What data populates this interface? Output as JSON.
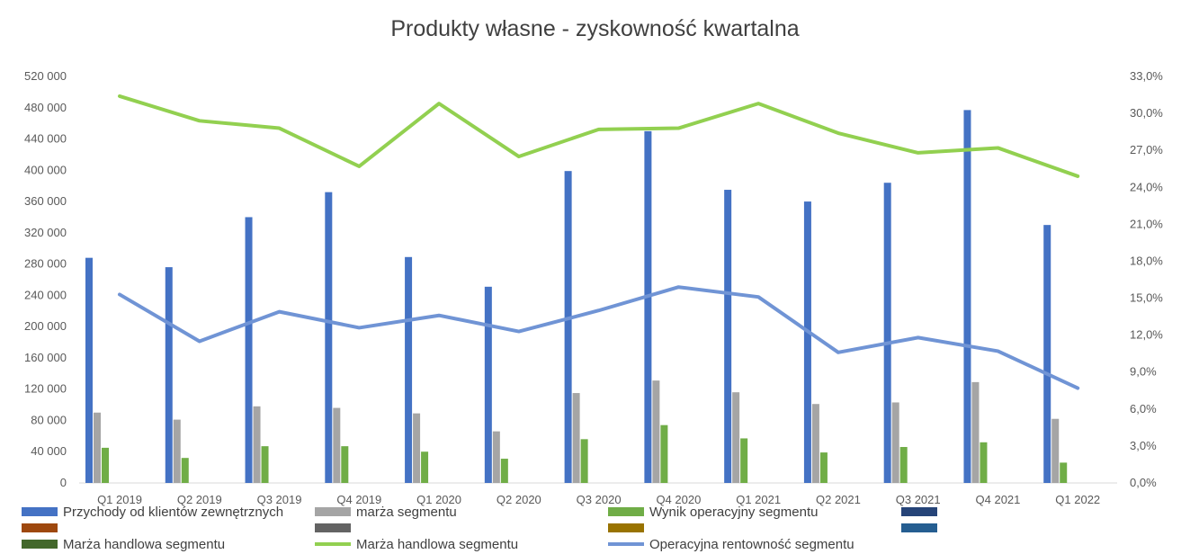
{
  "chart_data": {
    "type": "bar",
    "title": "Produkty własne - zyskowność kwartalna",
    "categories": [
      "Q1 2019",
      "Q2 2019",
      "Q3 2019",
      "Q4 2019",
      "Q1 2020",
      "Q2 2020",
      "Q3 2020",
      "Q4 2020",
      "Q1 2021",
      "Q2 2021",
      "Q3 2021",
      "Q4 2021",
      "Q1 2022"
    ],
    "y_left": {
      "min": 0,
      "max": 520000,
      "step": 40000,
      "tick_labels": [
        "0",
        "40 000",
        "80 000",
        "120 000",
        "160 000",
        "200 000",
        "240 000",
        "280 000",
        "320 000",
        "360 000",
        "400 000",
        "440 000",
        "480 000",
        "520 000"
      ]
    },
    "y_right": {
      "min": 0,
      "max": 33,
      "step": 3,
      "unit": "%",
      "tick_labels": [
        "0,0%",
        "3,0%",
        "6,0%",
        "9,0%",
        "12,0%",
        "15,0%",
        "18,0%",
        "21,0%",
        "24,0%",
        "27,0%",
        "30,0%",
        "33,0%"
      ]
    },
    "bar_series": [
      {
        "name": "Przychody od klientów zewnętrznych",
        "color": "#4472C4",
        "values": [
          288000,
          276000,
          340000,
          372000,
          289000,
          251000,
          399000,
          450000,
          375000,
          360000,
          384000,
          477000,
          330000
        ]
      },
      {
        "name": "marża segmentu",
        "color": "#A5A5A5",
        "values": [
          90000,
          81000,
          98000,
          96000,
          89000,
          66000,
          115000,
          131000,
          116000,
          101000,
          103000,
          129000,
          82000
        ]
      },
      {
        "name": "Wynik operacyjny segmentu",
        "color": "#70AD47",
        "values": [
          45000,
          32000,
          47000,
          47000,
          40000,
          31000,
          56000,
          74000,
          57000,
          39000,
          46000,
          52000,
          26000
        ]
      }
    ],
    "line_series": [
      {
        "name": "Marża handlowa segmentu",
        "color": "#92D050",
        "axis": "right",
        "values": [
          31.4,
          29.4,
          28.8,
          25.7,
          30.8,
          26.5,
          28.7,
          28.8,
          30.8,
          28.4,
          26.8,
          27.2,
          24.9
        ]
      },
      {
        "name": "Operacyjna rentowność segmentu",
        "color": "#7094D5",
        "axis": "right",
        "values": [
          15.3,
          11.5,
          13.9,
          12.6,
          13.6,
          12.3,
          14.0,
          15.9,
          15.1,
          10.6,
          11.8,
          10.7,
          7.7
        ]
      }
    ],
    "legend": {
      "placement": "bottom",
      "entries": [
        {
          "label": "Przychody od klientów zewnętrznych",
          "color": "#4472C4"
        },
        {
          "label": "marża segmentu",
          "color": "#A5A5A5"
        },
        {
          "label": "Wynik operacyjny segmentu",
          "color": "#70AD47"
        },
        {
          "label": "",
          "color": "#264478"
        },
        {
          "label": "",
          "color": "#9E480E"
        },
        {
          "label": "",
          "color": "#636363"
        },
        {
          "label": "",
          "color": "#997300"
        },
        {
          "label": "",
          "color": "#255E91"
        },
        {
          "label": "Marża handlowa segmentu",
          "color": "#43682B"
        },
        {
          "label": "Marża handlowa segmentu",
          "color": "#92D050",
          "style": "line"
        },
        {
          "label": "Operacyjna rentowność segmentu",
          "color": "#7094D5",
          "style": "line"
        }
      ]
    },
    "grid": false
  }
}
